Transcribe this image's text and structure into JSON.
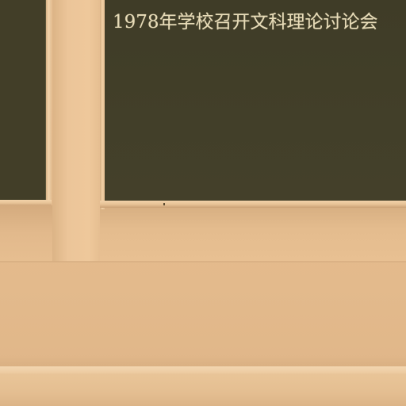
{
  "photo": {
    "subject": "blackboard-wall",
    "board": {
      "caption": "1978年学校召开文科理论讨论会"
    },
    "colors": {
      "board": "#423e28",
      "wall": "#e6bd8f",
      "chalk_text": "#e8dcb8",
      "frame": "#f0cfa5"
    }
  }
}
